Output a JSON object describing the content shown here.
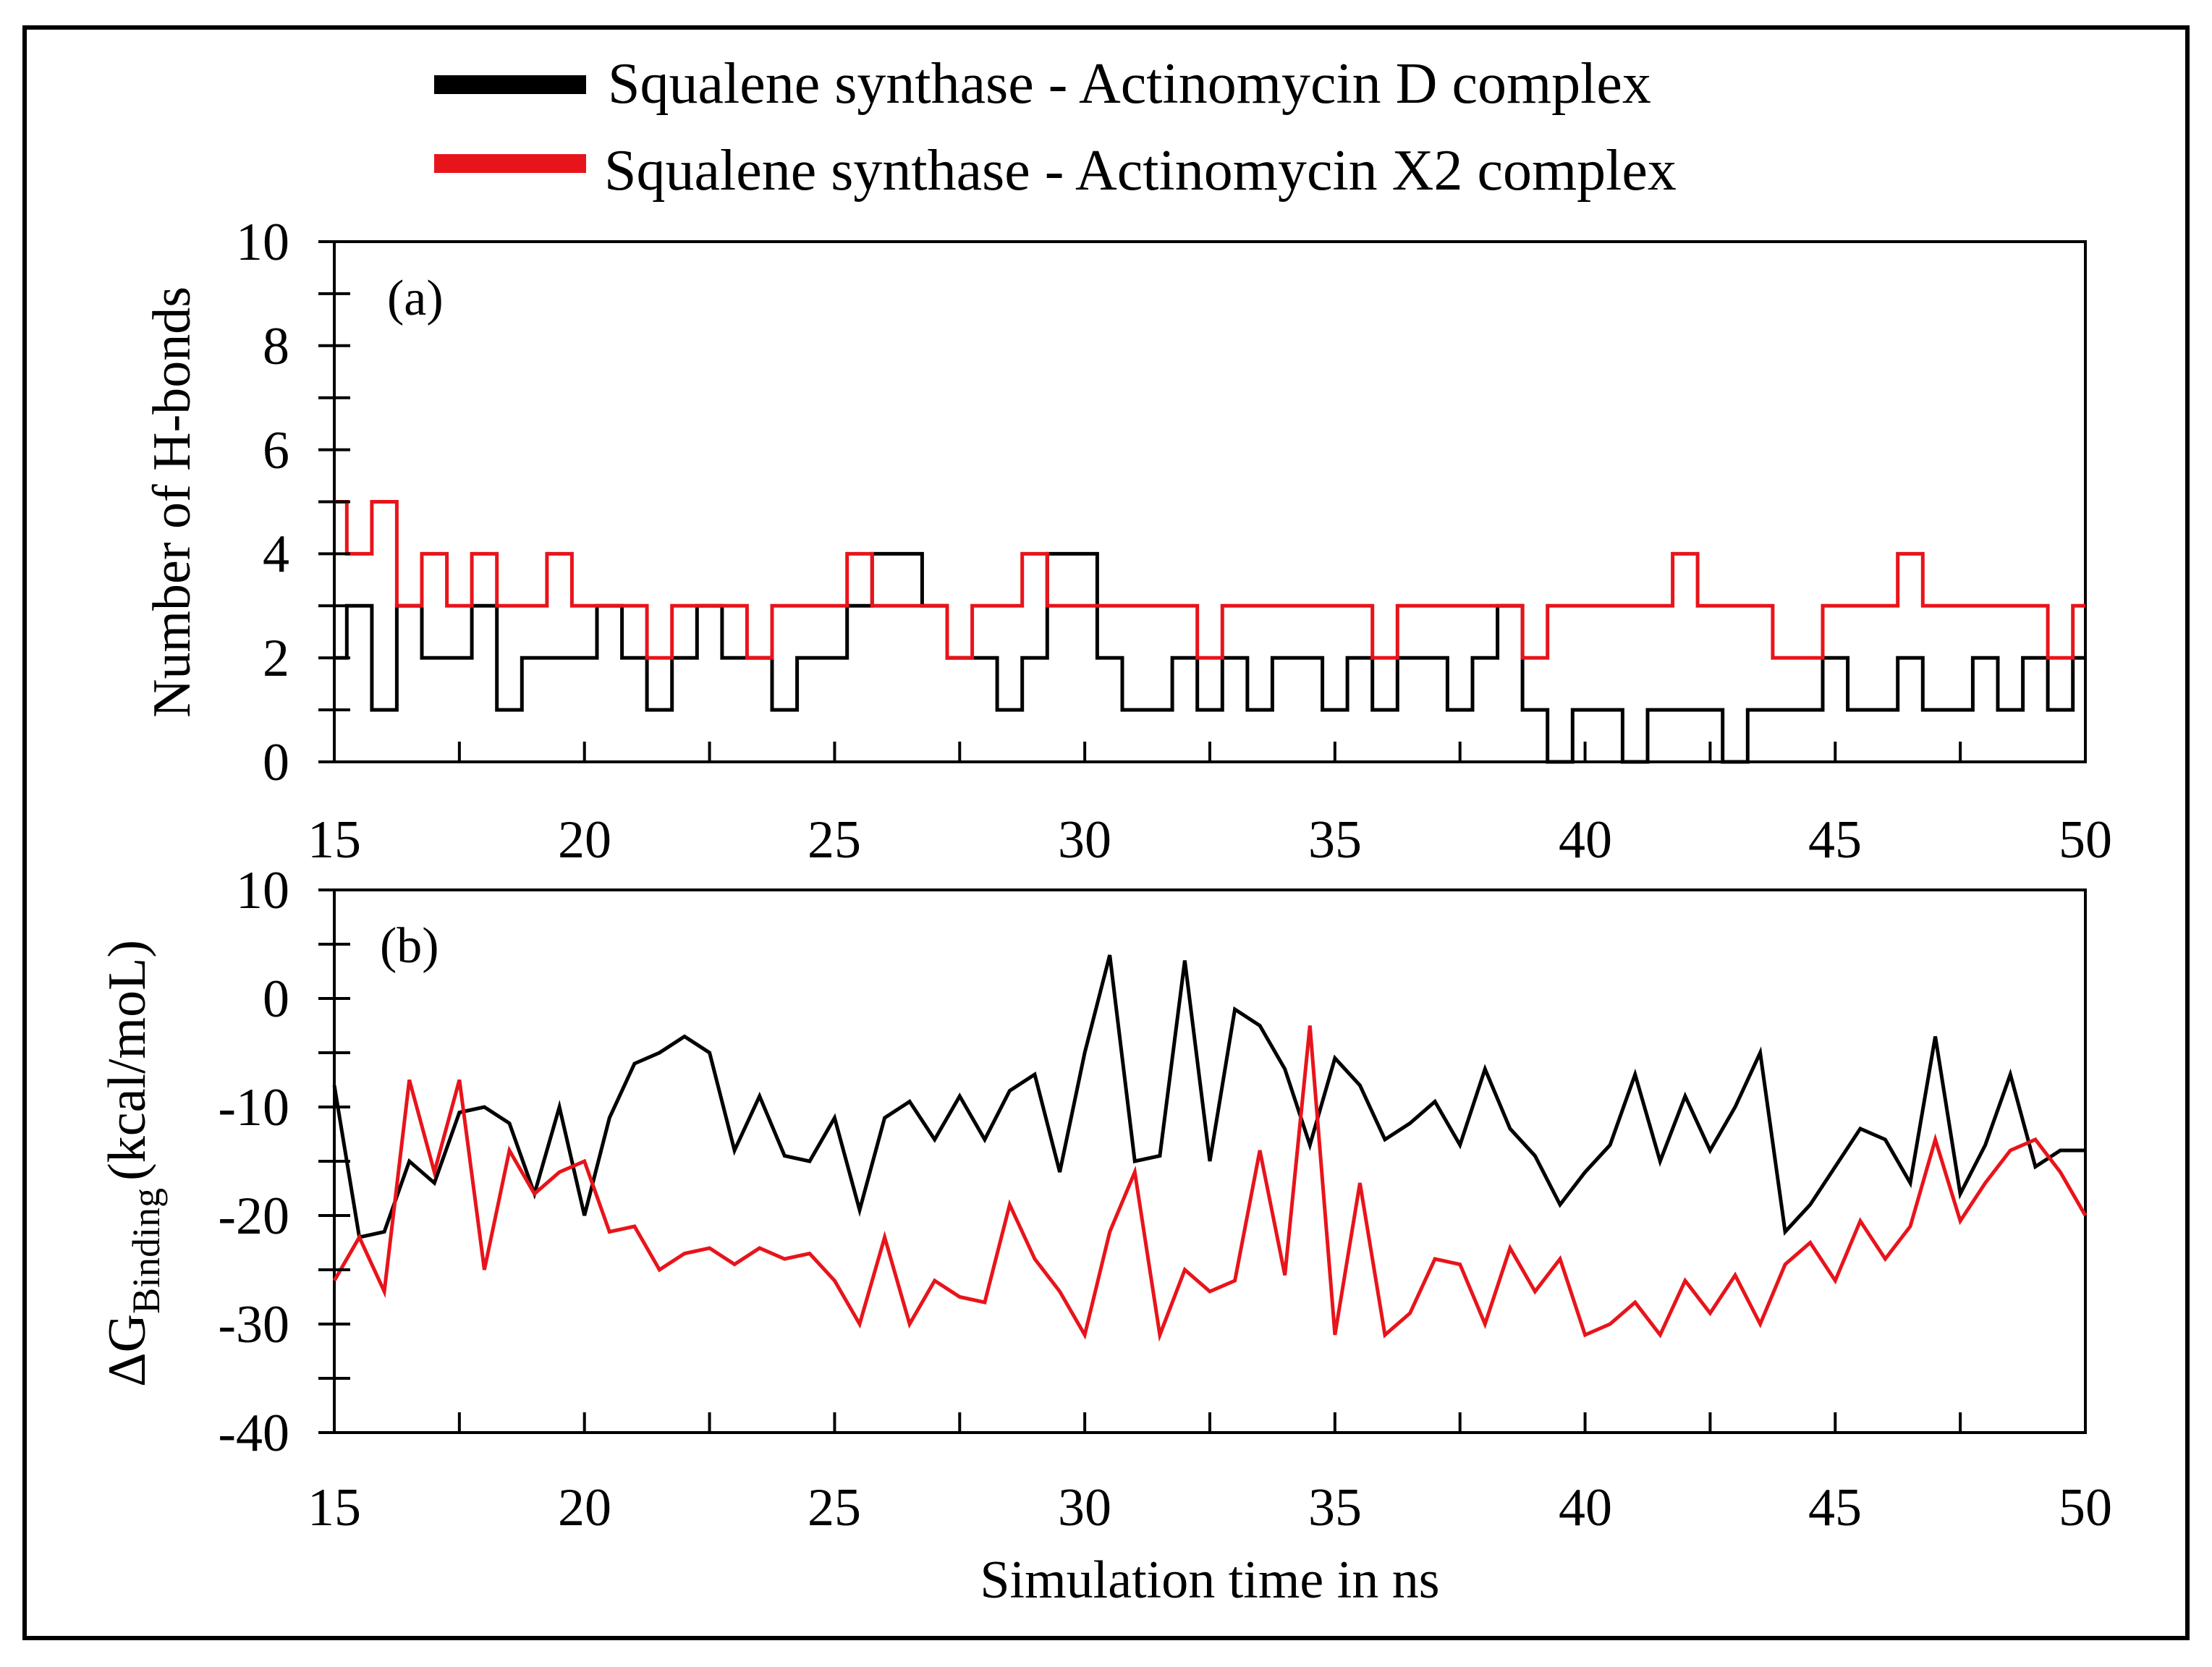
{
  "legend": [
    {
      "label": "Squalene synthase - Actinomycin D complex",
      "color": "#000000"
    },
    {
      "label": "Squalene synthase - Actinomycin X2 complex",
      "color": "#e8141b"
    }
  ],
  "chart_data": [
    {
      "type": "line",
      "panel_label": "(a)",
      "title": "",
      "xlabel": "",
      "ylabel": "Number of H-bonds",
      "xlim": [
        15,
        50
      ],
      "ylim": [
        0,
        10
      ],
      "x_ticks": [
        "15",
        "20",
        "25",
        "30",
        "35",
        "40",
        "45",
        "50"
      ],
      "y_ticks": [
        "0",
        "2",
        "4",
        "6",
        "8",
        "10"
      ],
      "series": [
        {
          "name": "Squalene synthase - Actinomycin D complex",
          "color": "#000000",
          "x": [
            15,
            15.5,
            16,
            16.5,
            17,
            17.5,
            18,
            18.5,
            19,
            19.5,
            20,
            20.5,
            21,
            21.5,
            22,
            22.5,
            23,
            23.5,
            24,
            24.5,
            25,
            25.5,
            26,
            26.5,
            27,
            27.5,
            28,
            28.5,
            29,
            29.5,
            30,
            30.5,
            31,
            31.5,
            32,
            32.5,
            33,
            33.5,
            34,
            34.5,
            35,
            35.5,
            36,
            36.5,
            37,
            37.5,
            38,
            38.5,
            39,
            39.5,
            40,
            40.5,
            41,
            41.5,
            42,
            42.5,
            43,
            43.5,
            44,
            44.5,
            45,
            45.5,
            46,
            46.5,
            47,
            47.5,
            48,
            48.5,
            49,
            49.5,
            50
          ],
          "y": [
            2,
            3,
            1,
            3,
            2,
            2,
            3,
            1,
            2,
            2,
            2,
            3,
            2,
            1,
            2,
            3,
            2,
            2,
            1,
            2,
            2,
            3,
            4,
            4,
            3,
            2,
            2,
            1,
            2,
            4,
            4,
            2,
            1,
            1,
            2,
            1,
            2,
            1,
            2,
            2,
            1,
            2,
            1,
            2,
            2,
            1,
            2,
            3,
            1,
            0,
            1,
            1,
            0,
            1,
            1,
            1,
            0,
            1,
            1,
            1,
            2,
            1,
            1,
            2,
            1,
            1,
            2,
            1,
            2,
            1,
            2
          ]
        },
        {
          "name": "Squalene synthase - Actinomycin X2 complex",
          "color": "#e8141b",
          "x": [
            15,
            15.5,
            16,
            16.5,
            17,
            17.5,
            18,
            18.5,
            19,
            19.5,
            20,
            20.5,
            21,
            21.5,
            22,
            22.5,
            23,
            23.5,
            24,
            24.5,
            25,
            25.5,
            26,
            26.5,
            27,
            27.5,
            28,
            28.5,
            29,
            29.5,
            30,
            30.5,
            31,
            31.5,
            32,
            32.5,
            33,
            33.5,
            34,
            34.5,
            35,
            35.5,
            36,
            36.5,
            37,
            37.5,
            38,
            38.5,
            39,
            39.5,
            40,
            40.5,
            41,
            41.5,
            42,
            42.5,
            43,
            43.5,
            44,
            44.5,
            45,
            45.5,
            46,
            46.5,
            47,
            47.5,
            48,
            48.5,
            49,
            49.5,
            50
          ],
          "y": [
            5,
            4,
            5,
            3,
            4,
            3,
            4,
            3,
            3,
            4,
            3,
            3,
            3,
            2,
            3,
            3,
            3,
            2,
            3,
            3,
            3,
            4,
            3,
            3,
            3,
            2,
            3,
            3,
            4,
            3,
            3,
            3,
            3,
            3,
            3,
            2,
            3,
            3,
            3,
            3,
            3,
            3,
            2,
            3,
            3,
            3,
            3,
            3,
            2,
            3,
            3,
            3,
            3,
            3,
            4,
            3,
            3,
            3,
            2,
            2,
            3,
            3,
            3,
            4,
            3,
            3,
            3,
            3,
            3,
            2,
            3
          ]
        }
      ]
    },
    {
      "type": "line",
      "panel_label": "(b)",
      "title": "",
      "xlabel": "Simulation time in ns",
      "ylabel": "ΔG",
      "ylabel_subscript": "Binding",
      "ylabel_units": "(kcal/moL)",
      "xlim": [
        15,
        50
      ],
      "ylim": [
        -40,
        10
      ],
      "x_ticks": [
        "15",
        "20",
        "25",
        "30",
        "35",
        "40",
        "45",
        "50"
      ],
      "y_ticks": [
        "-40",
        "-30",
        "-20",
        "-10",
        "0",
        "10"
      ],
      "series": [
        {
          "name": "Squalene synthase - Actinomycin D complex",
          "color": "#000000",
          "x": [
            15,
            15.5,
            16,
            16.5,
            17,
            17.5,
            18,
            18.5,
            19,
            19.5,
            20,
            20.5,
            21,
            21.5,
            22,
            22.5,
            23,
            23.5,
            24,
            24.5,
            25,
            25.5,
            26,
            26.5,
            27,
            27.5,
            28,
            28.5,
            29,
            29.5,
            30,
            30.5,
            31,
            31.5,
            32,
            32.5,
            33,
            33.5,
            34,
            34.5,
            35,
            35.5,
            36,
            36.5,
            37,
            37.5,
            38,
            38.5,
            39,
            39.5,
            40,
            40.5,
            41,
            41.5,
            42,
            42.5,
            43,
            43.5,
            44,
            44.5,
            45,
            45.5,
            46,
            46.5,
            47,
            47.5,
            48,
            48.5,
            49,
            49.5,
            50
          ],
          "y": [
            -8,
            -22,
            -21.5,
            -15,
            -17,
            -10.5,
            -10,
            -11.5,
            -18,
            -10,
            -20,
            -11,
            -6,
            -5,
            -3.5,
            -5,
            -14,
            -9,
            -14.5,
            -15,
            -11,
            -19.5,
            -11,
            -9.5,
            -13,
            -9,
            -13,
            -8.5,
            -7,
            -16,
            -5,
            4,
            -15,
            -14.5,
            3.5,
            -15,
            -1,
            -2.5,
            -6.5,
            -13.5,
            -5.5,
            -8,
            -13,
            -11.5,
            -9.5,
            -13.5,
            -6.5,
            -12,
            -14.5,
            -19,
            -16,
            -13.5,
            -7,
            -15,
            -9,
            -14,
            -10,
            -5,
            -21.5,
            -19,
            -15.5,
            -12,
            -13,
            -17,
            -3.5,
            -18,
            -13.5,
            -7,
            -15.5,
            -14,
            -14
          ]
        },
        {
          "name": "Squalene synthase - Actinomycin X2 complex",
          "color": "#e8141b",
          "x": [
            15,
            15.5,
            16,
            16.5,
            17,
            17.5,
            18,
            18.5,
            19,
            19.5,
            20,
            20.5,
            21,
            21.5,
            22,
            22.5,
            23,
            23.5,
            24,
            24.5,
            25,
            25.5,
            26,
            26.5,
            27,
            27.5,
            28,
            28.5,
            29,
            29.5,
            30,
            30.5,
            31,
            31.5,
            32,
            32.5,
            33,
            33.5,
            34,
            34.5,
            35,
            35.5,
            36,
            36.5,
            37,
            37.5,
            38,
            38.5,
            39,
            39.5,
            40,
            40.5,
            41,
            41.5,
            42,
            42.5,
            43,
            43.5,
            44,
            44.5,
            45,
            45.5,
            46,
            46.5,
            47,
            47.5,
            48,
            48.5,
            49,
            49.5,
            50
          ],
          "y": [
            -26,
            -22,
            -27,
            -7.5,
            -16,
            -7.5,
            -25,
            -14,
            -18,
            -16,
            -15,
            -21.5,
            -21,
            -25,
            -23.5,
            -23,
            -24.5,
            -23,
            -24,
            -23.5,
            -26,
            -30,
            -22,
            -30,
            -26,
            -27.5,
            -28,
            -19,
            -24,
            -27,
            -31,
            -21.5,
            -16,
            -31,
            -25,
            -27,
            -26,
            -14,
            -25.5,
            -2.5,
            -31,
            -17,
            -31,
            -29,
            -24,
            -24.5,
            -30,
            -23,
            -27,
            -24,
            -31,
            -30,
            -28,
            -31,
            -26,
            -29,
            -25.5,
            -30,
            -24.5,
            -22.5,
            -26,
            -20.5,
            -24,
            -21,
            -13,
            -20.5,
            -17,
            -14,
            -13,
            -16,
            -20
          ]
        }
      ]
    }
  ]
}
